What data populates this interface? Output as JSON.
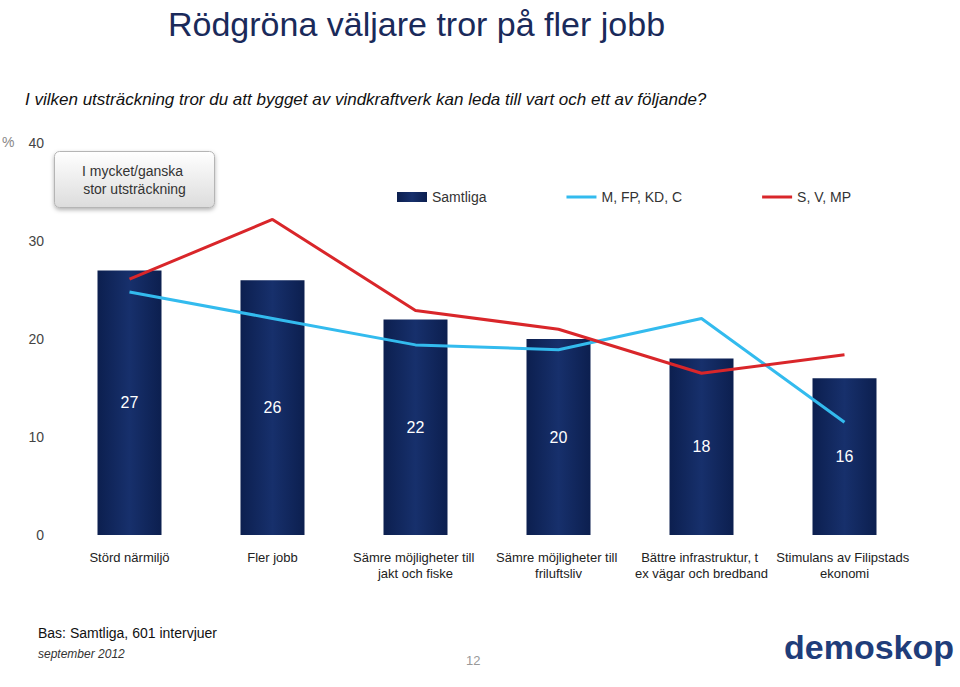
{
  "chart_data": {
    "type": "bar",
    "title": "Rödgröna väljare tror på fler jobb",
    "subtitle": "I vilken utsträckning tror du att bygget av vindkraftverk kan leda till vart och ett av följande?",
    "note": "I mycket/ganska stor utsträckning",
    "y_unit": "%",
    "categories": [
      "Störd närmiljö",
      "Fler jobb",
      "Sämre möjligheter till jakt och fiske",
      "Sämre möjligheter till friluftsliv",
      "Bättre infrastruktur, t ex vägar och bredband",
      "Stimulans av Filipstads ekonomi"
    ],
    "series": [
      {
        "name": "Samtliga",
        "type": "bar",
        "color": "#17306c",
        "data_labels": true,
        "values": [
          27,
          26,
          22,
          20,
          18,
          16
        ]
      },
      {
        "name": "M, FP, KD, C",
        "type": "line",
        "color": "#33bbee",
        "values": [
          24.8,
          22.1,
          19.4,
          18.9,
          22.1,
          11.5
        ]
      },
      {
        "name": "S, V, MP",
        "type": "line",
        "color": "#d9262a",
        "values": [
          26.1,
          32.2,
          22.9,
          21.0,
          16.5,
          18.4
        ]
      }
    ],
    "ylim": [
      0,
      40
    ],
    "yticks": [
      0,
      10,
      20,
      30,
      40
    ],
    "grid": false,
    "legend": "top",
    "source": "Bas: Samtliga, 601 intervjuer",
    "date": "september 2012",
    "page": "12",
    "logo": "demoskop"
  }
}
